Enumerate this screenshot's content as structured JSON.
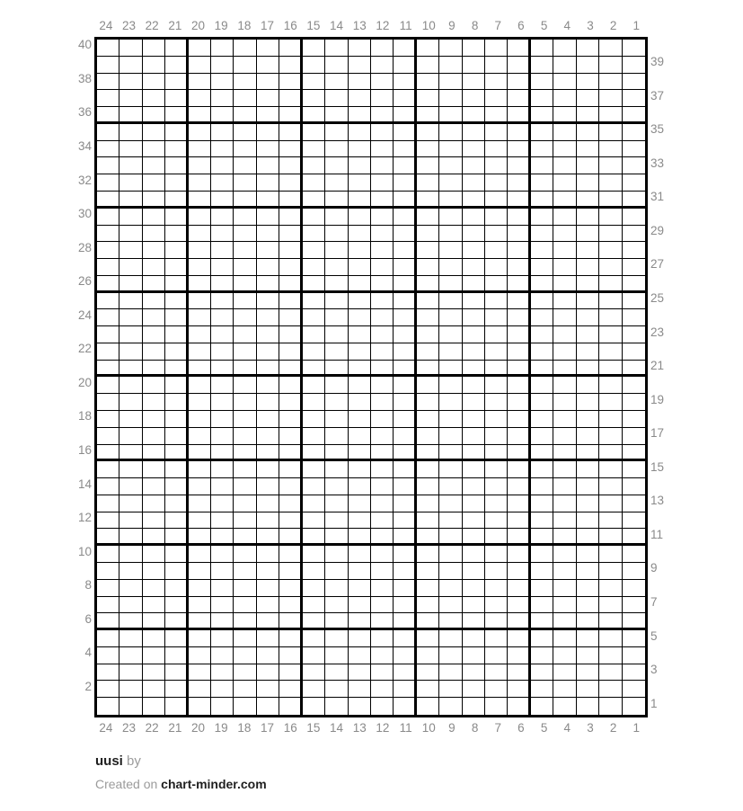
{
  "grid": {
    "columns": 24,
    "rows": 40,
    "bold_every": 5,
    "top_labels": [
      "24",
      "23",
      "22",
      "21",
      "20",
      "19",
      "18",
      "17",
      "16",
      "15",
      "14",
      "13",
      "12",
      "11",
      "10",
      "9",
      "8",
      "7",
      "6",
      "5",
      "4",
      "3",
      "2",
      "1"
    ],
    "bottom_labels": [
      "24",
      "23",
      "22",
      "21",
      "20",
      "19",
      "18",
      "17",
      "16",
      "15",
      "14",
      "13",
      "12",
      "11",
      "10",
      "9",
      "8",
      "7",
      "6",
      "5",
      "4",
      "3",
      "2",
      "1"
    ],
    "left_labels": [
      "40",
      "38",
      "36",
      "34",
      "32",
      "30",
      "28",
      "26",
      "24",
      "22",
      "20",
      "18",
      "16",
      "14",
      "12",
      "10",
      "8",
      "6",
      "4",
      "2"
    ],
    "right_labels": [
      "39",
      "37",
      "35",
      "33",
      "31",
      "29",
      "27",
      "25",
      "23",
      "21",
      "19",
      "17",
      "15",
      "13",
      "11",
      "9",
      "7",
      "5",
      "3",
      "1"
    ]
  },
  "footer": {
    "title": "uusi",
    "by_label": "by",
    "created_prefix": "Created on",
    "site": "chart-minder.com"
  },
  "colors": {
    "background": "#ffffff",
    "line": "#000000",
    "cell": "#ffffff",
    "label": "#8a8a8a",
    "muted": "#9b9b9b",
    "dark": "#1f1f1f"
  }
}
